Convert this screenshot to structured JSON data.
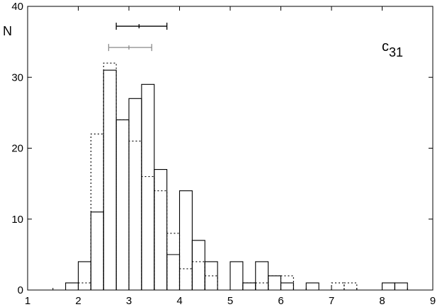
{
  "chart_data": {
    "type": "bar",
    "title": "",
    "xlabel": "",
    "ylabel": "N",
    "xlim": [
      1,
      9
    ],
    "ylim": [
      0,
      40
    ],
    "x_ticks": [
      1,
      2,
      3,
      4,
      5,
      6,
      7,
      8,
      9
    ],
    "y_ticks": [
      0,
      10,
      20,
      30,
      40
    ],
    "bin_width": 0.25,
    "bin_starts": [
      1.75,
      2.0,
      2.25,
      2.5,
      2.75,
      3.0,
      3.25,
      3.5,
      3.75,
      4.0,
      4.25,
      4.5,
      4.75,
      5.0,
      5.25,
      5.5,
      5.75,
      6.0,
      6.25,
      6.5,
      6.75,
      7.0,
      7.25,
      7.5,
      7.75,
      8.0,
      8.25
    ],
    "series": [
      {
        "style": "solid",
        "values": [
          1,
          4,
          11,
          31,
          24,
          27,
          29,
          17,
          5,
          14,
          7,
          4,
          0,
          4,
          1,
          4,
          2,
          1,
          0,
          1,
          0,
          0,
          0,
          0,
          0,
          1,
          1
        ]
      },
      {
        "style": "dotted",
        "values": [
          0,
          1,
          22,
          32,
          24,
          21,
          16,
          14,
          8,
          3,
          4,
          2,
          0,
          0,
          1,
          1,
          2,
          2,
          0,
          0,
          0,
          1,
          1,
          0,
          0,
          0,
          0
        ]
      }
    ],
    "error_bars": [
      {
        "style": "black",
        "center": 3.2,
        "low": 2.75,
        "high": 3.75,
        "level": 37.2
      },
      {
        "style": "gray",
        "center": 3.0,
        "low": 2.6,
        "high": 3.45,
        "level": 34.2
      }
    ],
    "annotation": {
      "main": "c",
      "subscript": "31"
    },
    "grid": false,
    "legend": "none"
  }
}
